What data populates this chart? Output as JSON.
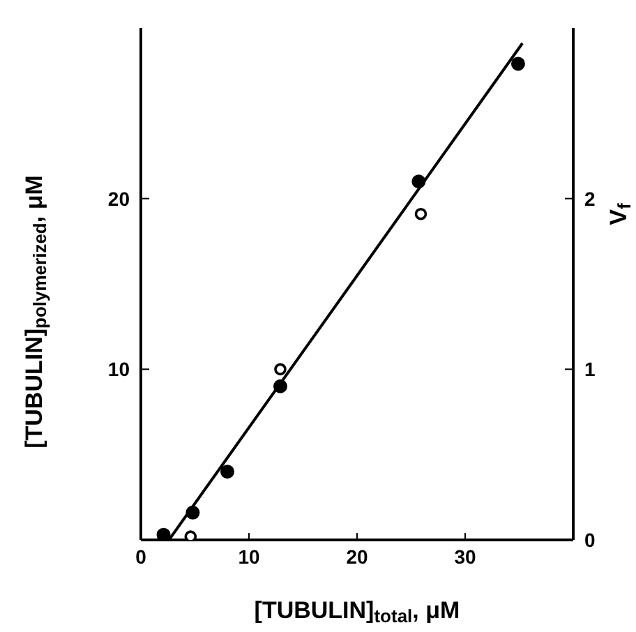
{
  "chart_data": {
    "type": "scatter",
    "xlabel": "[TUBULIN]$_{total}$, μM",
    "ylabel": "[TUBULIN]$_{polymerized}$, μM",
    "y2label": "V$_{f}$",
    "xlim": [
      0,
      40
    ],
    "xticks": [
      0,
      10,
      20,
      30
    ],
    "ylim": [
      0,
      30
    ],
    "yticks": [
      10,
      20
    ],
    "y2lim": [
      0,
      3
    ],
    "y2ticks": [
      0,
      1,
      2
    ],
    "series": [
      {
        "marker": "circle",
        "color": "#000000",
        "x": [
          2.1,
          4.8,
          8.0,
          12.9,
          25.7,
          34.9
        ],
        "values": [
          0.3,
          1.6,
          4.0,
          9.0,
          21.0,
          27.9
        ]
      },
      {
        "marker": "open-circle",
        "color": "#000000",
        "x": [
          4.6,
          12.9,
          25.9
        ],
        "values": [
          0.2,
          10.0,
          19.1
        ]
      },
      {
        "type": "line",
        "marker": "none",
        "line_style": "solid",
        "color": "#000000",
        "x": [
          2.6,
          35.3
        ],
        "values": [
          0,
          29.1
        ]
      }
    ]
  }
}
